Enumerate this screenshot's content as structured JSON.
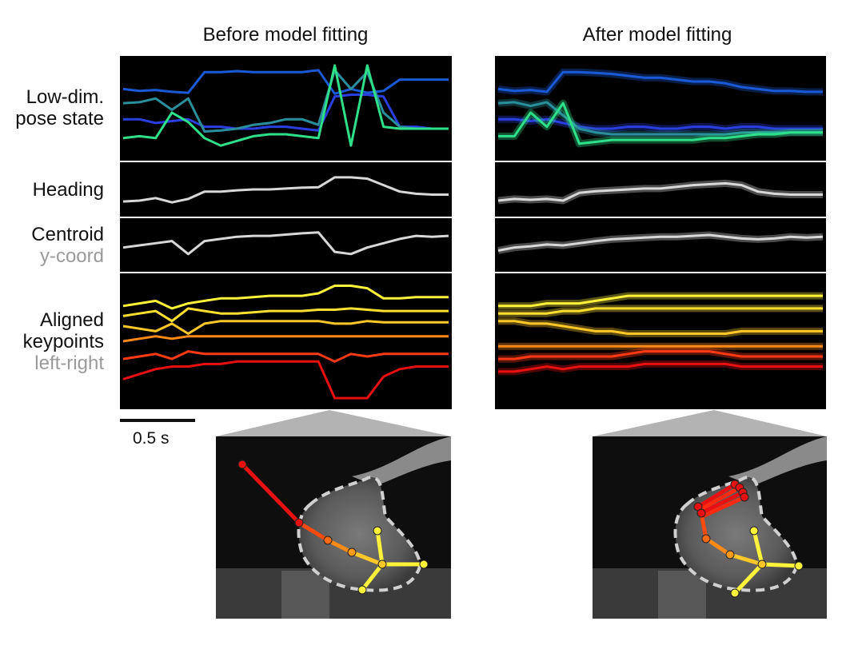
{
  "titles": {
    "before": "Before model fitting",
    "after": "After model fitting"
  },
  "row_labels": {
    "pose": {
      "line1": "Low-dim.",
      "line2": "pose state"
    },
    "heading": {
      "line1": "Heading"
    },
    "centroid": {
      "line1": "Centroid",
      "sub": "y-coord"
    },
    "keypoints": {
      "line1": "Aligned",
      "line2": "keypoints",
      "sub": "left-right"
    }
  },
  "scale_bar": {
    "label": "0.5 s",
    "duration_s": 0.5
  },
  "colors": {
    "pose_series": [
      "#1a5ad6",
      "#2a3fe0",
      "#2a8f9c",
      "#2fe08a"
    ],
    "heading": "#d8d8d8",
    "centroid": "#d8d8d8",
    "keypoint_series": [
      "#fff23a",
      "#ffe030",
      "#ffc828",
      "#ff8a18",
      "#ff3a14",
      "#e81010"
    ],
    "skeleton": [
      "#e81010",
      "#ff4a10",
      "#ff8a18",
      "#ffc828",
      "#fff23a"
    ],
    "mask_outline": "#d0d0d0"
  },
  "chart_data": [
    {
      "type": "line",
      "panel": "before",
      "x": [
        0,
        0.1,
        0.2,
        0.3,
        0.4,
        0.5,
        0.6,
        0.7,
        0.8,
        0.9,
        1.0,
        1.1,
        1.2,
        1.3,
        1.4,
        1.5,
        1.6,
        1.7,
        1.8,
        1.9,
        2.0
      ],
      "pose": [
        [
          0.3,
          0.32,
          0.31,
          0.33,
          0.34,
          0.12,
          0.12,
          0.11,
          0.12,
          0.12,
          0.12,
          0.12,
          0.1,
          0.35,
          0.3,
          0.34,
          0.32,
          0.2,
          0.2,
          0.2,
          0.2
        ],
        [
          0.62,
          0.62,
          0.66,
          0.64,
          0.62,
          0.7,
          0.7,
          0.72,
          0.72,
          0.7,
          0.7,
          0.72,
          0.74,
          0.38,
          0.36,
          0.36,
          0.38,
          0.7,
          0.7,
          0.72,
          0.72
        ],
        [
          0.45,
          0.44,
          0.4,
          0.52,
          0.4,
          0.75,
          0.74,
          0.72,
          0.68,
          0.66,
          0.62,
          0.62,
          0.68,
          0.1,
          0.3,
          0.12,
          0.55,
          0.7,
          0.72,
          0.72,
          0.72
        ],
        [
          0.82,
          0.8,
          0.82,
          0.55,
          0.65,
          0.82,
          0.9,
          0.85,
          0.8,
          0.78,
          0.78,
          0.8,
          0.82,
          0.05,
          0.9,
          0.05,
          0.7,
          0.72,
          0.72,
          0.72,
          0.72
        ]
      ],
      "heading": [
        0.78,
        0.76,
        0.7,
        0.8,
        0.72,
        0.55,
        0.55,
        0.52,
        0.5,
        0.5,
        0.48,
        0.46,
        0.45,
        0.22,
        0.22,
        0.25,
        0.4,
        0.55,
        0.6,
        0.62,
        0.62
      ],
      "centroid": [
        0.55,
        0.5,
        0.45,
        0.4,
        0.7,
        0.4,
        0.35,
        0.3,
        0.28,
        0.28,
        0.25,
        0.22,
        0.2,
        0.65,
        0.7,
        0.55,
        0.45,
        0.35,
        0.28,
        0.3,
        0.28
      ],
      "keypoints": [
        [
          0.22,
          0.2,
          0.18,
          0.24,
          0.2,
          0.18,
          0.16,
          0.16,
          0.15,
          0.14,
          0.14,
          0.14,
          0.12,
          0.06,
          0.06,
          0.08,
          0.16,
          0.16,
          0.15,
          0.15,
          0.15
        ],
        [
          0.3,
          0.28,
          0.26,
          0.34,
          0.24,
          0.26,
          0.28,
          0.28,
          0.27,
          0.26,
          0.26,
          0.26,
          0.25,
          0.25,
          0.24,
          0.25,
          0.26,
          0.26,
          0.26,
          0.26,
          0.26
        ],
        [
          0.38,
          0.4,
          0.42,
          0.36,
          0.44,
          0.36,
          0.34,
          0.34,
          0.34,
          0.34,
          0.34,
          0.34,
          0.34,
          0.36,
          0.36,
          0.34,
          0.35,
          0.35,
          0.35,
          0.35,
          0.35
        ],
        [
          0.5,
          0.48,
          0.46,
          0.48,
          0.46,
          0.46,
          0.46,
          0.46,
          0.46,
          0.46,
          0.46,
          0.46,
          0.46,
          0.46,
          0.46,
          0.46,
          0.46,
          0.46,
          0.46,
          0.46,
          0.46
        ],
        [
          0.64,
          0.62,
          0.6,
          0.64,
          0.58,
          0.6,
          0.6,
          0.6,
          0.6,
          0.6,
          0.6,
          0.6,
          0.6,
          0.66,
          0.6,
          0.62,
          0.6,
          0.6,
          0.6,
          0.6,
          0.6
        ],
        [
          0.8,
          0.76,
          0.72,
          0.7,
          0.7,
          0.68,
          0.68,
          0.66,
          0.66,
          0.66,
          0.66,
          0.66,
          0.66,
          0.95,
          0.95,
          0.95,
          0.78,
          0.72,
          0.7,
          0.7,
          0.7
        ]
      ]
    },
    {
      "type": "line",
      "panel": "after",
      "x": [
        0,
        0.1,
        0.2,
        0.3,
        0.4,
        0.5,
        0.6,
        0.7,
        0.8,
        0.9,
        1.0,
        1.1,
        1.2,
        1.3,
        1.4,
        1.5,
        1.6,
        1.7,
        1.8,
        1.9,
        2.0
      ],
      "pose": [
        [
          0.3,
          0.32,
          0.31,
          0.33,
          0.12,
          0.12,
          0.13,
          0.14,
          0.16,
          0.18,
          0.18,
          0.2,
          0.22,
          0.22,
          0.24,
          0.28,
          0.3,
          0.32,
          0.32,
          0.33,
          0.33
        ],
        [
          0.62,
          0.62,
          0.64,
          0.62,
          0.66,
          0.7,
          0.72,
          0.72,
          0.7,
          0.7,
          0.72,
          0.72,
          0.7,
          0.7,
          0.72,
          0.7,
          0.7,
          0.72,
          0.72,
          0.72,
          0.72
        ],
        [
          0.45,
          0.44,
          0.48,
          0.44,
          0.58,
          0.72,
          0.76,
          0.78,
          0.78,
          0.78,
          0.78,
          0.78,
          0.78,
          0.78,
          0.78,
          0.76,
          0.76,
          0.76,
          0.76,
          0.76,
          0.76
        ],
        [
          0.8,
          0.8,
          0.55,
          0.7,
          0.45,
          0.88,
          0.86,
          0.84,
          0.84,
          0.84,
          0.84,
          0.84,
          0.84,
          0.82,
          0.82,
          0.8,
          0.78,
          0.78,
          0.76,
          0.76,
          0.76
        ]
      ],
      "heading": [
        0.76,
        0.72,
        0.74,
        0.72,
        0.76,
        0.58,
        0.54,
        0.52,
        0.5,
        0.48,
        0.48,
        0.44,
        0.4,
        0.38,
        0.36,
        0.4,
        0.55,
        0.6,
        0.62,
        0.62,
        0.62
      ],
      "centroid": [
        0.62,
        0.55,
        0.52,
        0.48,
        0.5,
        0.45,
        0.4,
        0.36,
        0.34,
        0.32,
        0.3,
        0.3,
        0.28,
        0.26,
        0.3,
        0.34,
        0.36,
        0.34,
        0.3,
        0.32,
        0.3
      ],
      "keypoints": [
        [
          0.22,
          0.22,
          0.22,
          0.2,
          0.2,
          0.2,
          0.18,
          0.16,
          0.14,
          0.14,
          0.14,
          0.14,
          0.14,
          0.14,
          0.14,
          0.14,
          0.14,
          0.14,
          0.14,
          0.14,
          0.14
        ],
        [
          0.28,
          0.28,
          0.28,
          0.28,
          0.26,
          0.26,
          0.24,
          0.24,
          0.24,
          0.24,
          0.24,
          0.24,
          0.24,
          0.24,
          0.24,
          0.24,
          0.24,
          0.24,
          0.24,
          0.24,
          0.24
        ],
        [
          0.34,
          0.34,
          0.36,
          0.36,
          0.38,
          0.4,
          0.42,
          0.42,
          0.44,
          0.44,
          0.44,
          0.44,
          0.44,
          0.44,
          0.44,
          0.42,
          0.42,
          0.42,
          0.42,
          0.42,
          0.42
        ],
        [
          0.54,
          0.54,
          0.54,
          0.54,
          0.54,
          0.54,
          0.54,
          0.54,
          0.54,
          0.54,
          0.54,
          0.54,
          0.54,
          0.54,
          0.54,
          0.54,
          0.54,
          0.54,
          0.54,
          0.54,
          0.54
        ],
        [
          0.64,
          0.64,
          0.62,
          0.62,
          0.62,
          0.62,
          0.62,
          0.62,
          0.6,
          0.58,
          0.58,
          0.58,
          0.58,
          0.58,
          0.6,
          0.62,
          0.62,
          0.62,
          0.62,
          0.62,
          0.62
        ],
        [
          0.74,
          0.74,
          0.72,
          0.7,
          0.72,
          0.7,
          0.7,
          0.7,
          0.7,
          0.68,
          0.68,
          0.68,
          0.68,
          0.68,
          0.68,
          0.7,
          0.7,
          0.7,
          0.7,
          0.7,
          0.7
        ]
      ]
    }
  ]
}
